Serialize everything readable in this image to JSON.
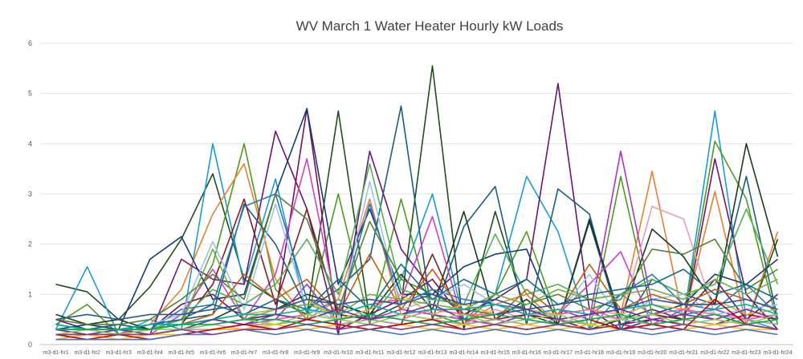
{
  "chart_data": {
    "type": "line",
    "title": "WV March 1  Water Heater Hourly kW Loads",
    "xlabel": "",
    "ylabel": "",
    "ylim": [
      0,
      6
    ],
    "yticks": [
      "0",
      "1",
      "2",
      "3",
      "4",
      "5",
      "6"
    ],
    "grid": true,
    "legend": "none",
    "categories": [
      "m3-d1-hr1",
      "m3-d1-hr2",
      "m3-d1-hr3",
      "m3-d1-hr4",
      "m3-d1-hr5",
      "m3-d1-hr6",
      "m3-d1-hr7",
      "m3-d1-hr8",
      "m3-d1-hr9",
      "m3-d1-hr10",
      "m3-d1-hr11",
      "m3-d1-hr12",
      "m3-d1-hr13",
      "m3-d1-hr14",
      "m3-d1-hr15",
      "m3-d1-hr16",
      "m3-d1-hr17",
      "m3-d1-hr18",
      "m3-d1-hr19",
      "m3-d1-hr20",
      "m3-d1-hr21",
      "m3-d1-hr22",
      "m3-d1-hr23",
      "m3-d1-hr24"
    ],
    "series": [
      {
        "color": "#1f4e1f",
        "values": [
          1.2,
          1.05,
          0.5,
          1.15,
          2.1,
          3.4,
          1.3,
          0.9,
          0.6,
          4.65,
          0.5,
          0.8,
          5.55,
          0.3,
          2.65,
          0.6,
          0.4,
          0.3,
          0.5,
          0.7,
          0.5,
          0.6,
          0.4,
          2.1
        ]
      },
      {
        "color": "#1a9bd7",
        "values": [
          0.3,
          1.55,
          0.2,
          0.5,
          0.3,
          4.0,
          1.2,
          3.3,
          0.6,
          0.9,
          0.5,
          1.3,
          3.0,
          0.5,
          1.0,
          3.35,
          2.25,
          0.3,
          1.0,
          0.6,
          0.5,
          4.65,
          0.5,
          0.3
        ]
      },
      {
        "color": "#4f9a1e",
        "values": [
          0.4,
          0.8,
          0.2,
          0.3,
          0.5,
          1.6,
          4.0,
          1.1,
          0.5,
          3.0,
          0.4,
          2.9,
          0.6,
          0.4,
          1.0,
          2.25,
          0.5,
          0.3,
          3.35,
          0.6,
          0.5,
          4.05,
          2.9,
          0.4
        ]
      },
      {
        "color": "#ed7d31",
        "values": [
          0.2,
          0.3,
          0.2,
          0.4,
          1.1,
          2.6,
          3.6,
          1.3,
          0.5,
          0.9,
          2.9,
          0.6,
          0.5,
          0.4,
          0.8,
          1.0,
          0.4,
          0.5,
          0.6,
          3.45,
          0.5,
          3.05,
          0.4,
          2.25
        ]
      },
      {
        "color": "#6e1470",
        "values": [
          0.1,
          0.2,
          0.3,
          0.2,
          1.7,
          1.3,
          1.2,
          4.25,
          2.7,
          0.2,
          3.85,
          1.9,
          1.1,
          0.6,
          0.9,
          1.3,
          5.2,
          0.7,
          0.3,
          0.5,
          0.4,
          3.7,
          1.0,
          0.3
        ]
      },
      {
        "color": "#7a0d5e",
        "values": [
          0.5,
          0.3,
          0.2,
          0.3,
          0.8,
          1.0,
          0.5,
          0.6,
          4.7,
          0.3,
          0.6,
          0.9,
          1.3,
          0.5,
          0.4,
          0.6,
          0.5,
          0.3,
          0.4,
          0.5,
          0.6,
          1.3,
          0.5,
          1.0
        ]
      },
      {
        "color": "#143c73",
        "values": [
          0.3,
          0.4,
          0.3,
          1.7,
          2.15,
          0.9,
          1.0,
          3.0,
          4.7,
          1.2,
          2.7,
          1.0,
          1.0,
          1.55,
          1.8,
          1.9,
          0.4,
          2.45,
          0.4,
          0.6,
          0.8,
          1.4,
          1.2,
          1.7
        ]
      },
      {
        "color": "#1c5d7c",
        "values": [
          0.2,
          0.3,
          0.4,
          0.3,
          0.5,
          0.6,
          2.8,
          2.0,
          0.7,
          1.1,
          1.7,
          4.75,
          0.5,
          2.35,
          3.15,
          0.4,
          3.1,
          2.6,
          0.3,
          1.3,
          1.0,
          0.8,
          3.35,
          0.5
        ]
      },
      {
        "color": "#1b3b1b",
        "values": [
          0.6,
          0.4,
          0.5,
          0.3,
          0.4,
          0.5,
          0.8,
          0.7,
          1.0,
          0.8,
          0.6,
          1.4,
          0.7,
          2.65,
          0.5,
          0.9,
          0.4,
          2.5,
          0.5,
          2.3,
          1.75,
          0.8,
          4.0,
          1.75
        ]
      },
      {
        "color": "#d13ec8",
        "values": [
          0.3,
          0.2,
          0.3,
          0.2,
          0.6,
          1.5,
          0.5,
          1.4,
          3.7,
          0.6,
          0.8,
          0.9,
          2.55,
          0.4,
          0.7,
          0.5,
          0.6,
          1.2,
          1.85,
          0.4,
          0.7,
          0.5,
          0.4,
          0.6
        ]
      },
      {
        "color": "#a933c4",
        "values": [
          0.2,
          0.3,
          0.2,
          0.3,
          0.4,
          0.5,
          0.4,
          0.5,
          1.2,
          0.4,
          0.5,
          0.7,
          0.6,
          0.5,
          0.4,
          0.6,
          0.7,
          0.5,
          3.85,
          0.8,
          0.6,
          0.7,
          0.5,
          0.6
        ]
      },
      {
        "color": "#e89eb0",
        "values": [
          0.2,
          0.2,
          0.3,
          0.2,
          0.3,
          0.4,
          0.3,
          0.5,
          0.6,
          0.5,
          0.4,
          0.6,
          0.5,
          0.4,
          0.7,
          0.5,
          0.4,
          0.6,
          0.5,
          2.75,
          2.5,
          0.6,
          0.5,
          0.4
        ]
      },
      {
        "color": "#7f2020",
        "values": [
          0.3,
          0.2,
          0.2,
          0.3,
          0.4,
          1.2,
          2.9,
          0.8,
          2.7,
          0.6,
          0.5,
          0.4,
          1.8,
          0.4,
          0.5,
          0.6,
          0.5,
          0.4,
          0.5,
          0.6,
          0.5,
          0.4,
          0.6,
          0.5
        ]
      },
      {
        "color": "#52b24f",
        "values": [
          0.4,
          0.3,
          0.2,
          0.3,
          0.5,
          1.1,
          0.8,
          1.2,
          2.1,
          1.0,
          3.6,
          1.1,
          0.9,
          0.8,
          2.2,
          1.0,
          1.2,
          0.9,
          1.0,
          1.3,
          1.0,
          1.2,
          2.7,
          1.2
        ]
      },
      {
        "color": "#2e75b6",
        "values": [
          0.3,
          0.2,
          0.2,
          0.3,
          0.7,
          0.8,
          2.75,
          3.0,
          0.9,
          0.6,
          2.8,
          0.8,
          1.1,
          0.9,
          0.8,
          0.7,
          0.5,
          0.6,
          1.0,
          1.4,
          0.8,
          0.7,
          1.2,
          0.6
        ]
      },
      {
        "color": "#9dc3e6",
        "values": [
          0.2,
          0.3,
          0.3,
          0.4,
          0.6,
          2.05,
          0.7,
          2.8,
          0.7,
          0.5,
          3.25,
          0.7,
          0.9,
          1.2,
          0.8,
          0.6,
          0.6,
          1.4,
          0.5,
          0.9,
          1.0,
          0.6,
          0.7,
          0.8
        ]
      },
      {
        "color": "#548235",
        "values": [
          0.5,
          0.4,
          0.4,
          0.5,
          0.9,
          1.4,
          0.9,
          3.0,
          2.5,
          0.7,
          2.45,
          1.3,
          1.0,
          0.7,
          0.6,
          0.8,
          1.0,
          0.7,
          0.9,
          1.9,
          1.8,
          2.1,
          1.1,
          1.5
        ]
      },
      {
        "color": "#c55a11",
        "values": [
          0.3,
          0.3,
          0.2,
          0.3,
          0.4,
          0.6,
          1.4,
          0.9,
          1.3,
          0.6,
          1.8,
          0.7,
          1.5,
          0.6,
          0.5,
          1.1,
          0.6,
          1.6,
          0.7,
          1.0,
          0.8,
          1.1,
          0.9,
          0.7
        ]
      },
      {
        "color": "#0f6d8c",
        "values": [
          0.4,
          0.3,
          0.3,
          0.4,
          0.5,
          0.8,
          0.6,
          0.9,
          0.7,
          1.3,
          0.7,
          1.6,
          0.9,
          1.3,
          1.0,
          1.3,
          0.8,
          1.0,
          1.1,
          1.2,
          1.5,
          1.0,
          1.2,
          0.9
        ]
      },
      {
        "color": "#70ad47",
        "values": [
          0.3,
          0.2,
          0.3,
          0.3,
          0.4,
          1.9,
          0.5,
          0.7,
          0.8,
          0.6,
          1.0,
          0.9,
          0.8,
          0.7,
          1.0,
          0.8,
          1.1,
          0.9,
          1.0,
          1.1,
          0.9,
          1.3,
          1.0,
          1.3
        ]
      },
      {
        "color": "#e8a838",
        "values": [
          0.2,
          0.2,
          0.2,
          0.3,
          0.3,
          0.5,
          0.6,
          0.7,
          0.9,
          0.5,
          0.7,
          1.0,
          0.6,
          0.8,
          0.6,
          0.7,
          0.6,
          0.7,
          0.6,
          0.8,
          0.7,
          0.9,
          0.6,
          0.7
        ]
      },
      {
        "color": "#2f5597",
        "values": [
          0.5,
          0.6,
          0.5,
          0.6,
          0.6,
          0.7,
          0.8,
          0.7,
          0.9,
          0.8,
          0.9,
          0.8,
          1.0,
          0.8,
          0.9,
          0.7,
          0.8,
          0.9,
          0.7,
          0.9,
          0.8,
          0.8,
          0.9,
          0.7
        ]
      },
      {
        "color": "#ff5ca8",
        "values": [
          0.3,
          0.3,
          0.2,
          0.2,
          0.3,
          0.4,
          0.5,
          0.5,
          0.6,
          0.5,
          0.6,
          0.5,
          0.7,
          0.6,
          0.6,
          0.5,
          0.6,
          0.7,
          0.5,
          0.6,
          0.7,
          0.6,
          0.5,
          0.6
        ]
      },
      {
        "color": "#00b0a0",
        "values": [
          0.4,
          0.3,
          0.3,
          0.4,
          0.4,
          0.5,
          0.6,
          0.6,
          0.7,
          0.6,
          0.8,
          0.6,
          0.7,
          0.7,
          0.8,
          0.6,
          0.7,
          0.6,
          0.7,
          0.8,
          0.6,
          0.7,
          0.8,
          0.6
        ]
      },
      {
        "color": "#a5a5a5",
        "values": [
          0.2,
          0.2,
          0.2,
          0.2,
          0.3,
          0.3,
          0.4,
          0.4,
          0.5,
          0.4,
          0.5,
          0.4,
          0.5,
          0.4,
          0.5,
          0.4,
          0.5,
          0.4,
          0.5,
          0.4,
          0.5,
          0.4,
          0.5,
          0.4
        ]
      },
      {
        "color": "#7030a0",
        "values": [
          0.3,
          0.2,
          0.3,
          0.2,
          0.3,
          0.5,
          0.4,
          0.6,
          0.5,
          0.7,
          0.5,
          0.6,
          0.8,
          0.5,
          0.6,
          0.7,
          0.5,
          0.6,
          0.7,
          0.5,
          0.6,
          0.5,
          0.7,
          0.5
        ]
      },
      {
        "color": "#92d050",
        "values": [
          0.2,
          0.3,
          0.2,
          0.3,
          0.3,
          0.4,
          0.5,
          0.4,
          0.6,
          0.5,
          0.4,
          0.6,
          0.5,
          0.6,
          0.4,
          0.5,
          0.6,
          0.4,
          0.5,
          0.6,
          0.4,
          0.5,
          0.4,
          0.6
        ]
      },
      {
        "color": "#ffc000",
        "values": [
          0.1,
          0.2,
          0.1,
          0.2,
          0.2,
          0.3,
          0.3,
          0.4,
          0.3,
          0.4,
          0.3,
          0.4,
          0.3,
          0.4,
          0.3,
          0.4,
          0.3,
          0.4,
          0.3,
          0.4,
          0.3,
          0.4,
          0.3,
          0.3
        ]
      },
      {
        "color": "#c00000",
        "values": [
          0.2,
          0.1,
          0.2,
          0.1,
          0.2,
          0.3,
          0.4,
          0.3,
          0.5,
          0.4,
          0.3,
          0.4,
          0.5,
          0.3,
          0.4,
          0.3,
          0.4,
          0.5,
          0.3,
          0.4,
          0.3,
          0.9,
          0.4,
          0.3
        ]
      },
      {
        "color": "#00b050",
        "values": [
          0.3,
          0.3,
          0.3,
          0.3,
          0.4,
          0.4,
          0.5,
          0.5,
          0.4,
          0.5,
          0.6,
          0.5,
          0.4,
          0.5,
          0.6,
          0.5,
          0.4,
          0.5,
          0.6,
          0.4,
          0.5,
          0.6,
          0.4,
          0.5
        ]
      },
      {
        "color": "#4472c4",
        "values": [
          0.1,
          0.1,
          0.1,
          0.1,
          0.2,
          0.2,
          0.3,
          0.2,
          0.3,
          0.2,
          0.3,
          0.2,
          0.3,
          0.2,
          0.3,
          0.2,
          0.3,
          0.2,
          0.3,
          0.2,
          0.3,
          0.2,
          0.3,
          0.2
        ]
      },
      {
        "color": "#8b3a8b",
        "values": [
          0.2,
          0.2,
          0.2,
          0.2,
          0.3,
          0.2,
          0.3,
          0.3,
          0.4,
          0.3,
          0.4,
          0.3,
          0.4,
          0.3,
          0.4,
          0.3,
          0.4,
          0.3,
          0.4,
          0.3,
          0.4,
          0.3,
          0.4,
          0.3
        ]
      }
    ]
  }
}
